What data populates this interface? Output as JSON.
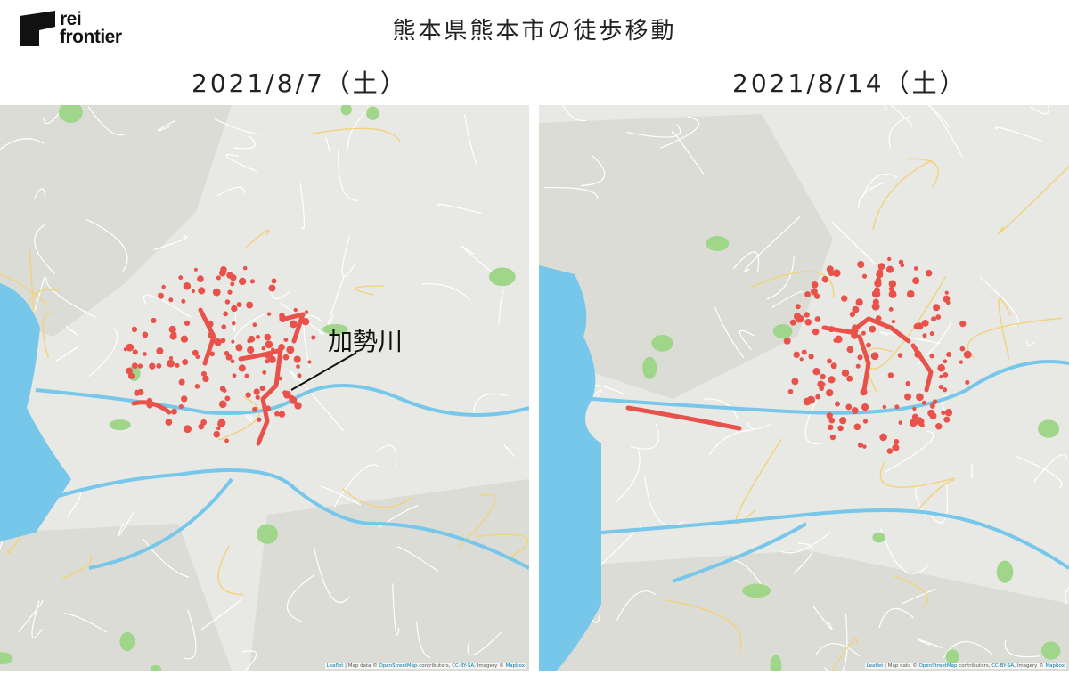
{
  "logo": {
    "line1": "rei",
    "line2": "frontier"
  },
  "title": "熊本県熊本市の徒歩移動",
  "maps": [
    {
      "date": "2021/8/7（土）",
      "annotation": "加勢川"
    },
    {
      "date": "2021/8/14（土）"
    }
  ],
  "attribution": {
    "leaflet": "Leaflet",
    "sep": " | Map data © ",
    "osm": "OpenStreetMap",
    "contrib": " contributors, ",
    "license": "CC-BY-SA",
    "imagery": ", Imagery © ",
    "mapbox": "Mapbox"
  },
  "colors": {
    "walk": "#e8524a",
    "water": "#76c7ea",
    "land": "#e8e8e4",
    "park": "#9fd68a"
  }
}
